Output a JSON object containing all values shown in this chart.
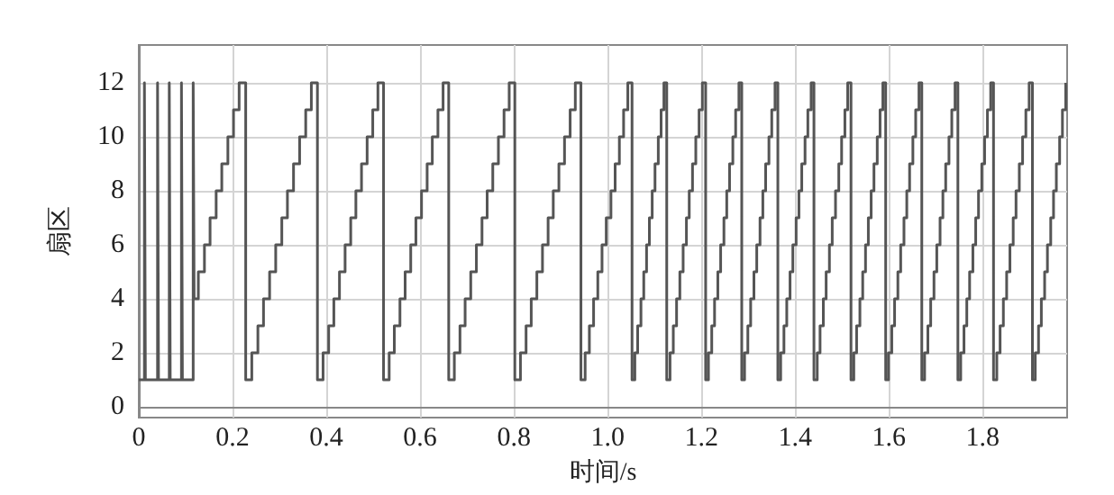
{
  "chart_data": {
    "type": "step",
    "xlabel": "时间/s",
    "ylabel": "扇区",
    "xlim": [
      0,
      1.98
    ],
    "xticks": [
      0,
      0.2,
      0.4,
      0.6,
      0.8,
      {
        "value": 1.0,
        "label": "1.0"
      },
      1.2,
      1.4,
      1.6,
      1.8
    ],
    "ylim": [
      -0.4,
      13.4
    ],
    "yticks": [
      0,
      2,
      4,
      6,
      8,
      10,
      12
    ],
    "grid": true,
    "marker": "none",
    "line_style": "solid",
    "series": [
      {
        "color": "#555555",
        "x": [
          0,
          0.012,
          0.014,
          0.04,
          0.042,
          0.065,
          0.067,
          0.091,
          0.093,
          0.116,
          0.118,
          0.127,
          0.14,
          0.152,
          0.165,
          0.177,
          0.19,
          0.202,
          0.214,
          0.228,
          0.241,
          0.254,
          0.266,
          0.279,
          0.292,
          0.305,
          0.317,
          0.33,
          0.343,
          0.356,
          0.368,
          0.381,
          0.393,
          0.405,
          0.416,
          0.428,
          0.44,
          0.452,
          0.463,
          0.475,
          0.487,
          0.499,
          0.51,
          0.522,
          0.534,
          0.545,
          0.557,
          0.568,
          0.58,
          0.591,
          0.603,
          0.615,
          0.626,
          0.638,
          0.649,
          0.661,
          0.673,
          0.685,
          0.696,
          0.708,
          0.72,
          0.732,
          0.743,
          0.755,
          0.767,
          0.779,
          0.79,
          0.802,
          0.814,
          0.826,
          0.837,
          0.849,
          0.861,
          0.873,
          0.884,
          0.896,
          0.908,
          0.92,
          0.931,
          0.943,
          0.952,
          0.961,
          0.97,
          0.979,
          0.988,
          0.997,
          1.007,
          1.016,
          1.025,
          1.034,
          1.043,
          1.052,
          1.058,
          1.064,
          1.071,
          1.077,
          1.083,
          1.089,
          1.095,
          1.101,
          1.108,
          1.114,
          1.12,
          1.126,
          1.133,
          1.14,
          1.147,
          1.154,
          1.161,
          1.168,
          1.174,
          1.181,
          1.188,
          1.195,
          1.202,
          1.209,
          1.215,
          1.222,
          1.228,
          1.235,
          1.241,
          1.248,
          1.254,
          1.26,
          1.267,
          1.273,
          1.28,
          1.286,
          1.292,
          1.299,
          1.305,
          1.312,
          1.318,
          1.325,
          1.331,
          1.337,
          1.344,
          1.35,
          1.357,
          1.363,
          1.369,
          1.376,
          1.382,
          1.389,
          1.395,
          1.402,
          1.408,
          1.414,
          1.421,
          1.427,
          1.434,
          1.44,
          1.447,
          1.453,
          1.46,
          1.466,
          1.473,
          1.479,
          1.486,
          1.493,
          1.499,
          1.506,
          1.512,
          1.519,
          1.525,
          1.531,
          1.538,
          1.544,
          1.55,
          1.556,
          1.562,
          1.568,
          1.575,
          1.581,
          1.587,
          1.593,
          1.599,
          1.606,
          1.612,
          1.619,
          1.625,
          1.632,
          1.638,
          1.644,
          1.651,
          1.657,
          1.664,
          1.67,
          1.676,
          1.683,
          1.689,
          1.696,
          1.702,
          1.709,
          1.715,
          1.721,
          1.728,
          1.734,
          1.741,
          1.747,
          1.753,
          1.76,
          1.766,
          1.772,
          1.779,
          1.785,
          1.791,
          1.798,
          1.804,
          1.81,
          1.817,
          1.823,
          1.83,
          1.837,
          1.844,
          1.851,
          1.858,
          1.865,
          1.871,
          1.878,
          1.885,
          1.892,
          1.899,
          1.906,
          1.912,
          1.919,
          1.925,
          1.932,
          1.938,
          1.945,
          1.951,
          1.957,
          1.964,
          1.97,
          1.977
        ],
        "values": [
          1,
          12,
          1,
          12,
          1,
          12,
          1,
          12,
          1,
          12,
          4,
          5,
          6,
          7,
          8,
          9,
          10,
          11,
          12,
          1,
          2,
          3,
          4,
          5,
          6,
          7,
          8,
          9,
          10,
          11,
          12,
          1,
          2,
          3,
          4,
          5,
          6,
          7,
          8,
          9,
          10,
          11,
          12,
          1,
          2,
          3,
          4,
          5,
          6,
          7,
          8,
          9,
          10,
          11,
          12,
          1,
          2,
          3,
          4,
          5,
          6,
          7,
          8,
          9,
          10,
          11,
          12,
          1,
          2,
          3,
          4,
          5,
          6,
          7,
          8,
          9,
          10,
          11,
          12,
          1,
          2,
          3,
          4,
          5,
          6,
          7,
          8,
          9,
          10,
          11,
          12,
          1,
          2,
          3,
          4,
          5,
          6,
          7,
          8,
          9,
          10,
          11,
          12,
          1,
          2,
          3,
          4,
          5,
          6,
          7,
          8,
          9,
          10,
          11,
          12,
          1,
          2,
          3,
          4,
          5,
          6,
          7,
          8,
          9,
          10,
          11,
          12,
          1,
          2,
          3,
          4,
          5,
          6,
          7,
          8,
          9,
          10,
          11,
          12,
          1,
          2,
          3,
          4,
          5,
          6,
          7,
          8,
          9,
          10,
          11,
          12,
          1,
          2,
          3,
          4,
          5,
          6,
          7,
          8,
          9,
          10,
          11,
          12,
          1,
          2,
          3,
          4,
          5,
          6,
          7,
          8,
          9,
          10,
          11,
          12,
          1,
          2,
          3,
          4,
          5,
          6,
          7,
          8,
          9,
          10,
          11,
          12,
          1,
          2,
          3,
          4,
          5,
          6,
          7,
          8,
          9,
          10,
          11,
          12,
          1,
          2,
          3,
          4,
          5,
          6,
          7,
          8,
          9,
          10,
          11,
          12,
          1,
          2,
          3,
          4,
          5,
          6,
          7,
          8,
          9,
          10,
          11,
          12,
          1,
          2,
          3,
          4,
          5,
          6,
          7,
          8,
          9,
          10,
          11,
          12
        ]
      }
    ]
  }
}
